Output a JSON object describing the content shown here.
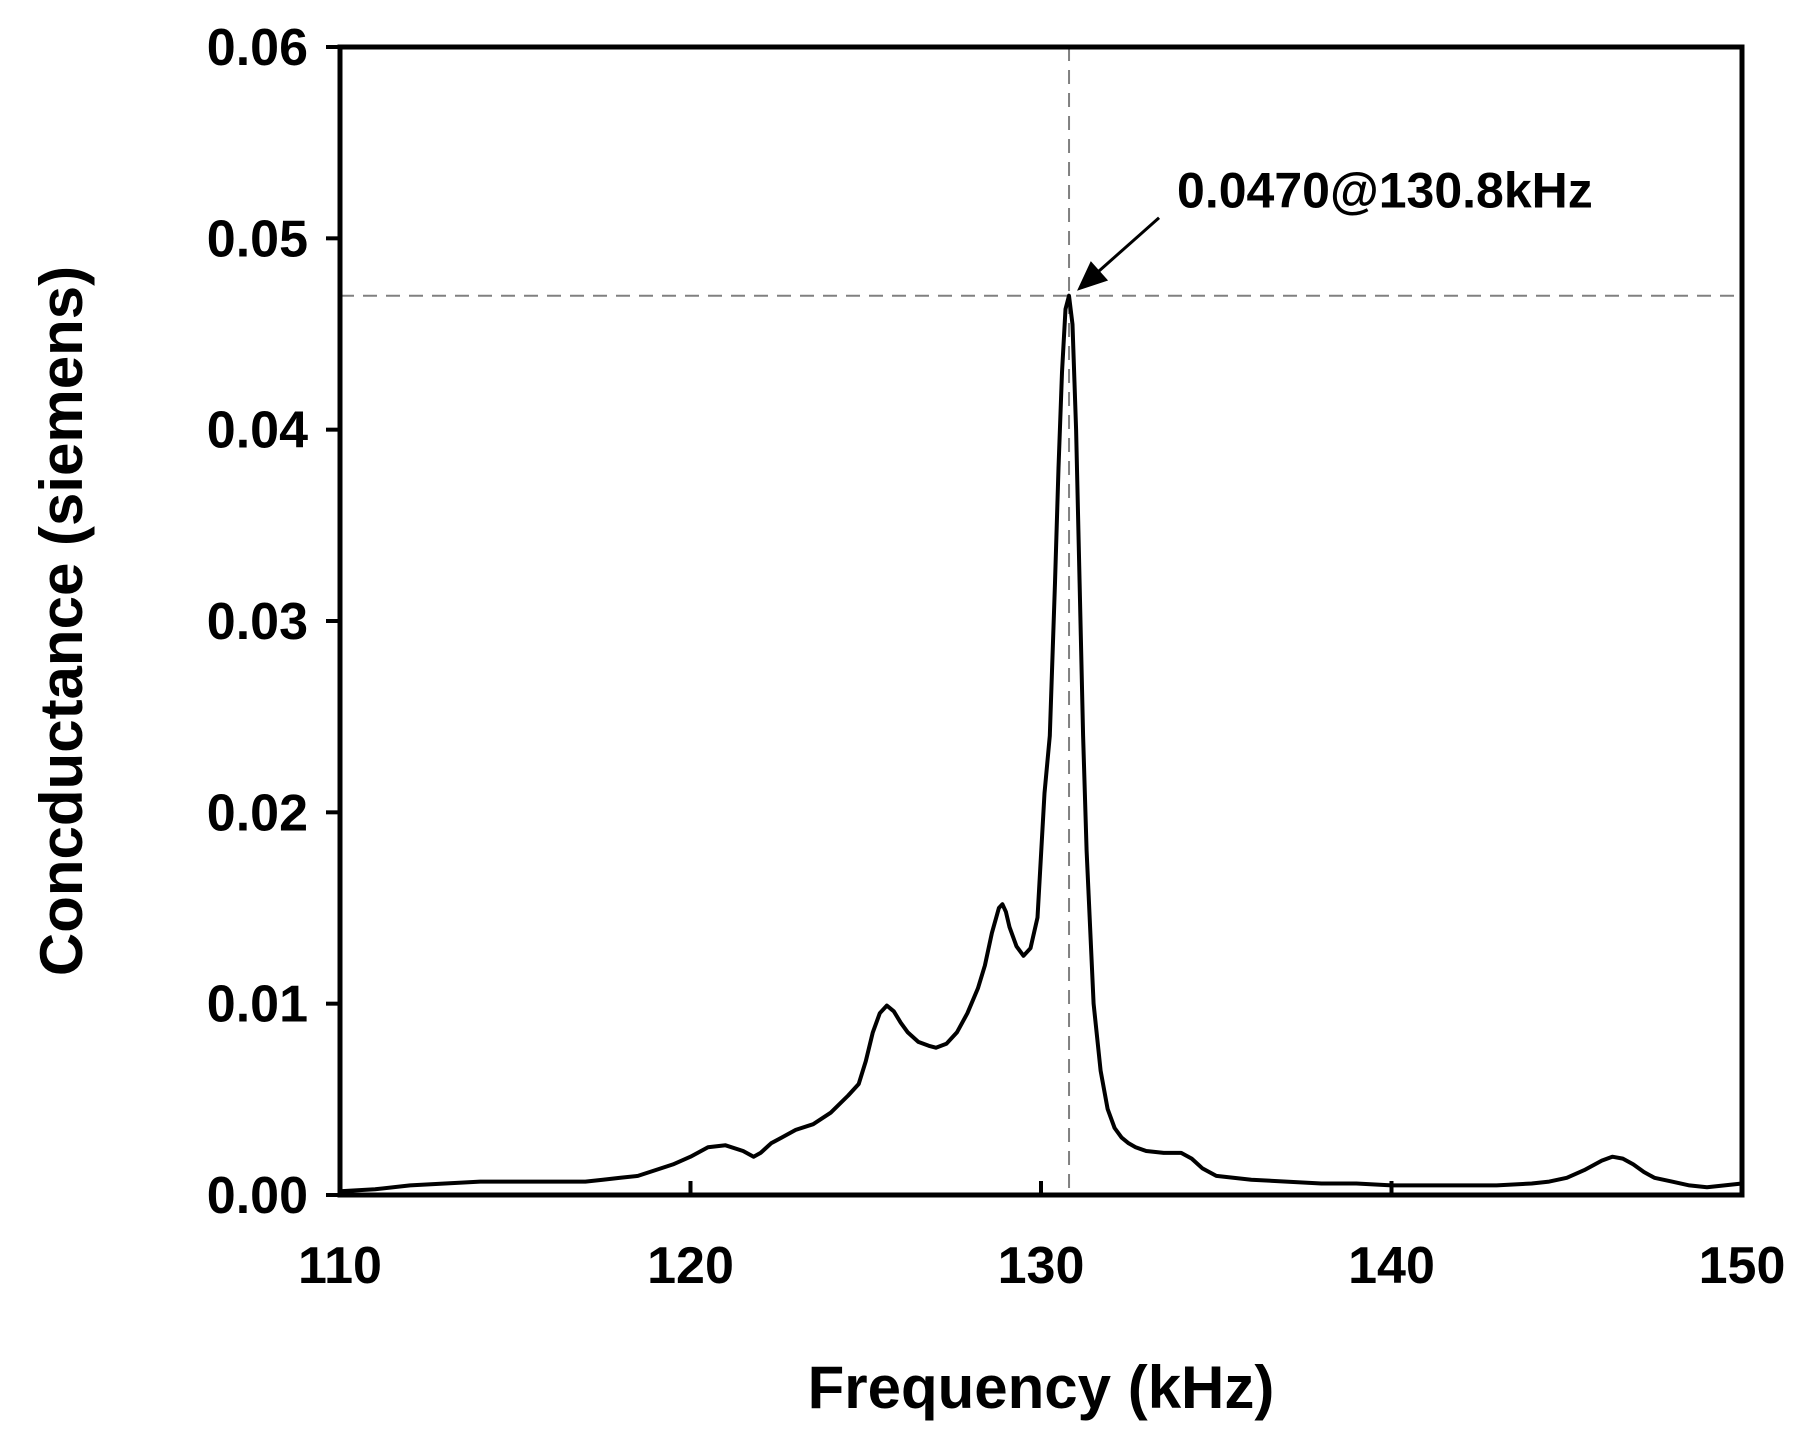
{
  "chart_data": {
    "type": "line",
    "title": "",
    "xlabel": "Frequency (kHz)",
    "ylabel": "Concductance (siemens)",
    "xlim": [
      110,
      150
    ],
    "ylim": [
      0,
      0.06
    ],
    "xticks": [
      110,
      120,
      130,
      140,
      150
    ],
    "yticks": [
      0.0,
      0.01,
      0.02,
      0.03,
      0.04,
      0.05,
      0.06
    ],
    "xtick_labels": [
      "110",
      "120",
      "130",
      "140",
      "150"
    ],
    "ytick_labels": [
      "0.00",
      "0.01",
      "0.02",
      "0.03",
      "0.04",
      "0.05",
      "0.06"
    ],
    "grid": false,
    "legend": "none",
    "line_color": "#000000",
    "reference_lines": {
      "x": 130.8,
      "y": 0.047,
      "style": "dashed",
      "color": "#808080"
    },
    "annotation": {
      "text": "0.0470@130.8kHz",
      "x": 130.8,
      "y": 0.047
    },
    "series": [
      {
        "x": [
          110,
          111,
          112,
          113,
          114,
          115,
          116,
          117,
          117.5,
          118,
          118.5,
          119,
          119.5,
          120,
          120.5,
          121,
          121.5,
          121.8,
          122,
          122.3,
          122.6,
          123,
          123.5,
          124,
          124.5,
          124.8,
          125,
          125.2,
          125.4,
          125.6,
          125.8,
          126,
          126.2,
          126.5,
          126.8,
          127,
          127.3,
          127.6,
          127.9,
          128.2,
          128.4,
          128.6,
          128.8,
          128.9,
          129.0,
          129.1,
          129.3,
          129.5,
          129.7,
          129.9,
          130.1,
          130.25,
          130.4,
          130.5,
          130.6,
          130.7,
          130.8,
          130.9,
          131.0,
          131.1,
          131.2,
          131.3,
          131.5,
          131.7,
          131.9,
          132.1,
          132.3,
          132.5,
          132.7,
          133,
          133.5,
          134,
          134.3,
          134.6,
          135,
          136,
          137,
          138,
          139,
          140,
          141,
          142,
          143,
          144,
          144.5,
          145,
          145.5,
          146,
          146.3,
          146.6,
          146.9,
          147.2,
          147.5,
          148,
          148.5,
          149,
          149.5,
          150
        ],
        "y": [
          0.0002,
          0.0003,
          0.0005,
          0.0006,
          0.0007,
          0.0007,
          0.0007,
          0.0007,
          0.0008,
          0.0009,
          0.001,
          0.0013,
          0.0016,
          0.002,
          0.0025,
          0.0026,
          0.0023,
          0.002,
          0.0022,
          0.0027,
          0.003,
          0.0034,
          0.0037,
          0.0043,
          0.0052,
          0.0058,
          0.007,
          0.0085,
          0.0095,
          0.0099,
          0.0096,
          0.009,
          0.0085,
          0.008,
          0.0078,
          0.0077,
          0.0079,
          0.0085,
          0.0095,
          0.0108,
          0.012,
          0.0137,
          0.015,
          0.0152,
          0.0148,
          0.014,
          0.013,
          0.0125,
          0.0129,
          0.0145,
          0.021,
          0.024,
          0.032,
          0.038,
          0.043,
          0.0463,
          0.047,
          0.0455,
          0.04,
          0.032,
          0.024,
          0.018,
          0.01,
          0.0065,
          0.0045,
          0.0035,
          0.003,
          0.0027,
          0.0025,
          0.0023,
          0.0022,
          0.0022,
          0.0019,
          0.0014,
          0.001,
          0.0008,
          0.0007,
          0.0006,
          0.0006,
          0.0005,
          0.0005,
          0.0005,
          0.0005,
          0.0006,
          0.0007,
          0.0009,
          0.0013,
          0.0018,
          0.002,
          0.0019,
          0.0016,
          0.0012,
          0.0009,
          0.0007,
          0.0005,
          0.0004,
          0.0005,
          0.0006
        ]
      }
    ]
  }
}
